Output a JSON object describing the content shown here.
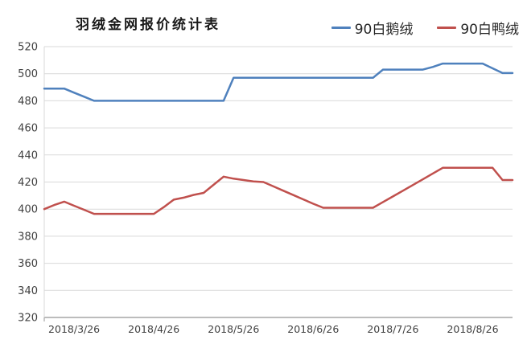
{
  "title": "羽绒金网报价统计表",
  "chart_data": {
    "type": "line",
    "title": "羽绒金网报价统计表",
    "xlabel": "",
    "ylabel": "",
    "ylim": [
      320,
      520
    ],
    "ytick_step": 20,
    "grid": true,
    "legend_position": "top-right",
    "x_tick_labels": [
      "2018/3/26",
      "2018/4/26",
      "2018/5/26",
      "2018/6/26",
      "2018/7/26",
      "2018/8/26"
    ],
    "x_tick_indices": [
      3,
      11,
      19,
      27,
      35,
      43
    ],
    "n_points": 48,
    "series": [
      {
        "name": "90白鹅绒",
        "color": "#4F81BD",
        "values": [
          489,
          489,
          489,
          486,
          483,
          480,
          480,
          480,
          480,
          480,
          480,
          480,
          480,
          480,
          480,
          480,
          480,
          480,
          480,
          497,
          497,
          497,
          497,
          497,
          497,
          497,
          497,
          497,
          497,
          497,
          497,
          497,
          497,
          497,
          503,
          503,
          503,
          503,
          503,
          505,
          507.5,
          507.5,
          507.5,
          507.5,
          507.5,
          504,
          500.5,
          500.5
        ]
      },
      {
        "name": "90白鸭绒",
        "color": "#C0504D",
        "values": [
          400,
          403,
          405.5,
          402.5,
          399.5,
          396.5,
          396.5,
          396.5,
          396.5,
          396.5,
          396.5,
          396.5,
          401.5,
          407,
          408.5,
          410.5,
          412,
          418,
          424,
          422.5,
          421.5,
          420.5,
          420,
          416.8,
          413.6,
          410.4,
          407.2,
          404,
          401,
          401,
          401,
          401,
          401,
          401,
          405.2,
          409.4,
          413.6,
          417.8,
          422,
          426.3,
          430.5,
          430.5,
          430.5,
          430.5,
          430.5,
          430.5,
          421.5,
          421.5
        ]
      }
    ],
    "colors": {
      "grid": "#d9d9d9",
      "axis": "#a6a6a6",
      "tick_text": "#404040"
    }
  }
}
